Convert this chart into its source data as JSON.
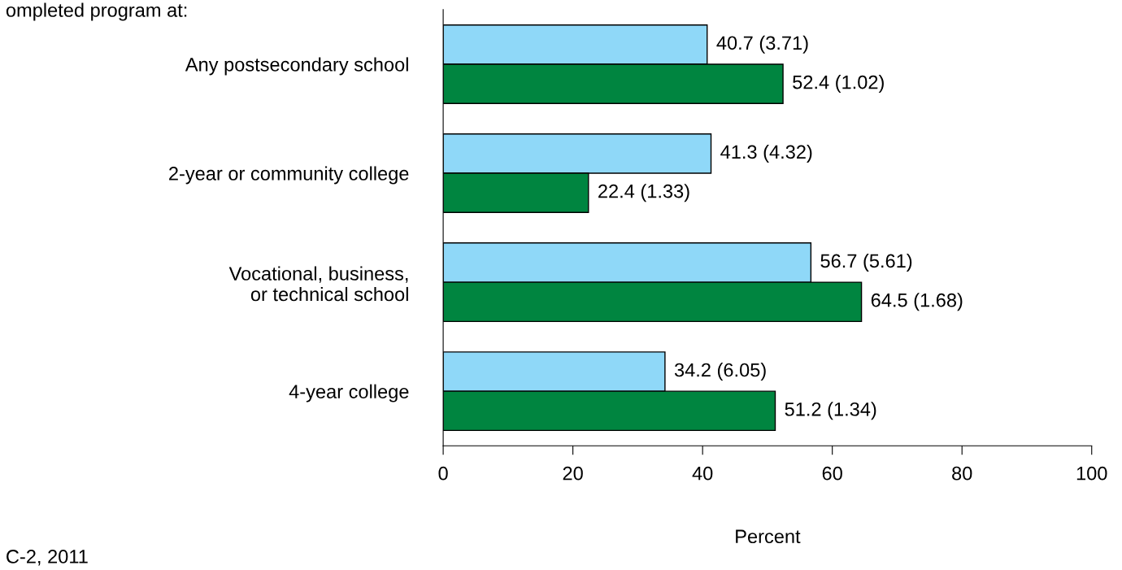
{
  "chart_data": {
    "type": "bar",
    "orientation": "horizontal",
    "categories": [
      "Any postsecondary school",
      "2-year or community college",
      "Vocational, business,\nor technical school",
      "4-year college"
    ],
    "series": [
      {
        "color": "#8fd8f8",
        "values": [
          40.7,
          41.3,
          56.7,
          34.2
        ],
        "value_labels": [
          "40.7 (3.71)",
          "41.3 (4.32)",
          "56.7 (5.61)",
          "34.2 (6.05)"
        ]
      },
      {
        "color": "#008540",
        "values": [
          52.4,
          22.4,
          64.5,
          51.2
        ],
        "value_labels": [
          "52.4 (1.02)",
          "22.4 (1.33)",
          "64.5 (1.68)",
          "51.2 (1.34)"
        ]
      }
    ],
    "xlim": [
      0,
      100
    ],
    "xticks": [
      0,
      20,
      40,
      60,
      80,
      100
    ],
    "xlabel": "Percent",
    "grid": false,
    "legend": false,
    "annotations": [
      "ompleted program at:",
      "C-2, 2011"
    ]
  }
}
